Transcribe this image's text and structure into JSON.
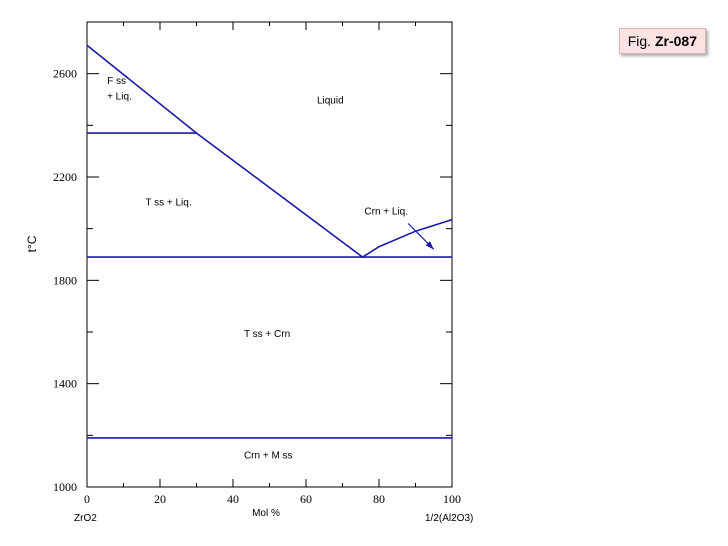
{
  "figure_label": {
    "prefix": "Fig.",
    "code": "Zr-087"
  },
  "chart_data": {
    "type": "line",
    "title": "",
    "xlabel": "Mol %",
    "ylabel": "t°C",
    "x_left_end_label": "ZrO2",
    "x_right_end_label": "1/2(Al2O3)",
    "xlim": [
      0,
      100
    ],
    "ylim": [
      1000,
      2800
    ],
    "xticks": [
      0,
      20,
      40,
      60,
      80,
      100
    ],
    "yticks": [
      1000,
      1400,
      1800,
      2200,
      2600
    ],
    "grid": false,
    "line_color": "#1a1aa6",
    "series": [
      {
        "points": [
          [
            0,
            2710
          ],
          [
            30,
            2370
          ],
          [
            75.5,
            1890
          ]
        ]
      },
      {
        "points": [
          [
            75.5,
            1890
          ],
          [
            80,
            1930
          ],
          [
            90,
            1990
          ],
          [
            100,
            2035
          ]
        ]
      },
      {
        "points": [
          [
            0,
            2370
          ],
          [
            30,
            2370
          ]
        ]
      },
      {
        "points": [
          [
            0,
            1890
          ],
          [
            100,
            1890
          ]
        ]
      },
      {
        "points": [
          [
            0,
            1190
          ],
          [
            100,
            1190
          ]
        ]
      }
    ],
    "annotations": [
      {
        "text": "F ss",
        "x": 5.5,
        "y": 2560
      },
      {
        "text": "+ Liq.",
        "x": 5.5,
        "y": 2500
      },
      {
        "text": "Liquid",
        "x": 63,
        "y": 2485
      },
      {
        "text": "T ss + Liq.",
        "x": 16,
        "y": 2090
      },
      {
        "text": "Crn + Liq.",
        "x": 76,
        "y": 2055
      },
      {
        "text": "T ss + Crn",
        "x": 43,
        "y": 1580
      },
      {
        "text": "Crn + M ss",
        "x": 43,
        "y": 1110
      }
    ],
    "arrow": {
      "from": [
        88,
        2020
      ],
      "to": [
        95,
        1920
      ]
    }
  }
}
